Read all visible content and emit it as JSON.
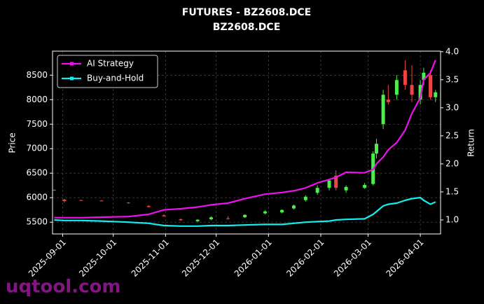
{
  "chart_data": {
    "type": "candlestick",
    "title": "FUTURES - BZ2608.DCE",
    "subtitle": "BZ2608.DCE",
    "ylabel": "Price",
    "y2label": "Return",
    "watermark": "uqtool.com",
    "x": [
      "2025-08-27",
      "2025-09-02",
      "2025-09-12",
      "2025-09-24",
      "2025-10-10",
      "2025-10-22",
      "2025-10-31",
      "2025-11-10",
      "2025-11-20",
      "2025-11-28",
      "2025-12-08",
      "2025-12-18",
      "2025-12-30",
      "2026-01-09",
      "2026-01-16",
      "2026-01-23",
      "2026-01-30",
      "2026-02-06",
      "2026-02-10",
      "2026-02-16",
      "2026-02-27",
      "2026-03-04",
      "2026-03-06",
      "2026-03-10",
      "2026-03-13",
      "2026-03-18",
      "2026-03-23",
      "2026-03-27",
      "2026-04-01",
      "2026-04-03",
      "2026-04-07",
      "2026-04-10"
    ],
    "open": [
      6160,
      5960,
      5950,
      5940,
      5900,
      5830,
      5640,
      5560,
      5520,
      5560,
      5580,
      5600,
      5680,
      5700,
      5780,
      5950,
      6100,
      6200,
      6450,
      6150,
      6200,
      6280,
      6900,
      7500,
      8000,
      8100,
      8600,
      8300,
      8000,
      8400,
      8500,
      8050
    ],
    "high": [
      6170,
      5980,
      5960,
      5950,
      5910,
      5850,
      5660,
      5580,
      5560,
      5620,
      5620,
      5660,
      5740,
      5760,
      5860,
      6050,
      6250,
      6380,
      6560,
      6250,
      6300,
      6950,
      7200,
      8200,
      8300,
      8500,
      8800,
      8700,
      8400,
      8650,
      8600,
      8200
    ],
    "low": [
      6140,
      5900,
      5940,
      5930,
      5880,
      5800,
      5610,
      5530,
      5500,
      5540,
      5550,
      5590,
      5660,
      5680,
      5760,
      5920,
      6060,
      6150,
      6150,
      6100,
      6180,
      6250,
      6800,
      7400,
      7900,
      8000,
      8200,
      7950,
      7900,
      8300,
      8000,
      7950
    ],
    "close": [
      6150,
      5930,
      5945,
      5935,
      5890,
      5810,
      5620,
      5540,
      5550,
      5600,
      5570,
      5650,
      5720,
      5750,
      5840,
      6020,
      6200,
      6350,
      6200,
      6220,
      6260,
      6900,
      7100,
      8100,
      7950,
      8400,
      8300,
      8100,
      8300,
      8550,
      8050,
      8150
    ],
    "up_color": "#4cee4c",
    "down_color": "#ee4444",
    "series": [
      {
        "name": "AI Strategy",
        "color": "#ee11ee",
        "axis": "y2",
        "values": [
          1.04,
          1.04,
          1.04,
          1.05,
          1.06,
          1.1,
          1.18,
          1.2,
          1.23,
          1.27,
          1.3,
          1.38,
          1.46,
          1.49,
          1.52,
          1.57,
          1.66,
          1.72,
          1.76,
          1.85,
          1.84,
          1.9,
          2.0,
          2.12,
          2.25,
          2.38,
          2.6,
          2.9,
          3.18,
          3.5,
          3.62,
          3.85
        ]
      },
      {
        "name": "Buy-and-Hold",
        "color": "#11eeee",
        "axis": "y2",
        "values": [
          1.0,
          0.99,
          0.99,
          0.98,
          0.96,
          0.94,
          0.9,
          0.89,
          0.89,
          0.9,
          0.9,
          0.91,
          0.92,
          0.92,
          0.94,
          0.96,
          0.97,
          0.98,
          1.0,
          1.01,
          1.02,
          1.1,
          1.15,
          1.25,
          1.28,
          1.3,
          1.35,
          1.38,
          1.4,
          1.35,
          1.28,
          1.32
        ]
      }
    ],
    "xlim": [
      "2025-08-26",
      "2026-04-13"
    ],
    "xticks": [
      "2025-09-01",
      "2025-10-01",
      "2025-11-01",
      "2025-12-01",
      "2026-01-01",
      "2026-02-01",
      "2026-03-01",
      "2026-04-01"
    ],
    "ylim": [
      5260,
      8990
    ],
    "yticks": [
      5500,
      6000,
      6500,
      7000,
      7500,
      8000,
      8500
    ],
    "y2lim": [
      0.75,
      4.01
    ],
    "y2ticks": [
      {
        "value": 1,
        "label": "1.0"
      },
      1.5,
      {
        "value": 2,
        "label": "2.0"
      },
      2.5,
      {
        "value": 3,
        "label": "3.0"
      },
      3.5,
      {
        "value": 4,
        "label": "4.0"
      }
    ],
    "grid": true,
    "legend": "upper left"
  }
}
